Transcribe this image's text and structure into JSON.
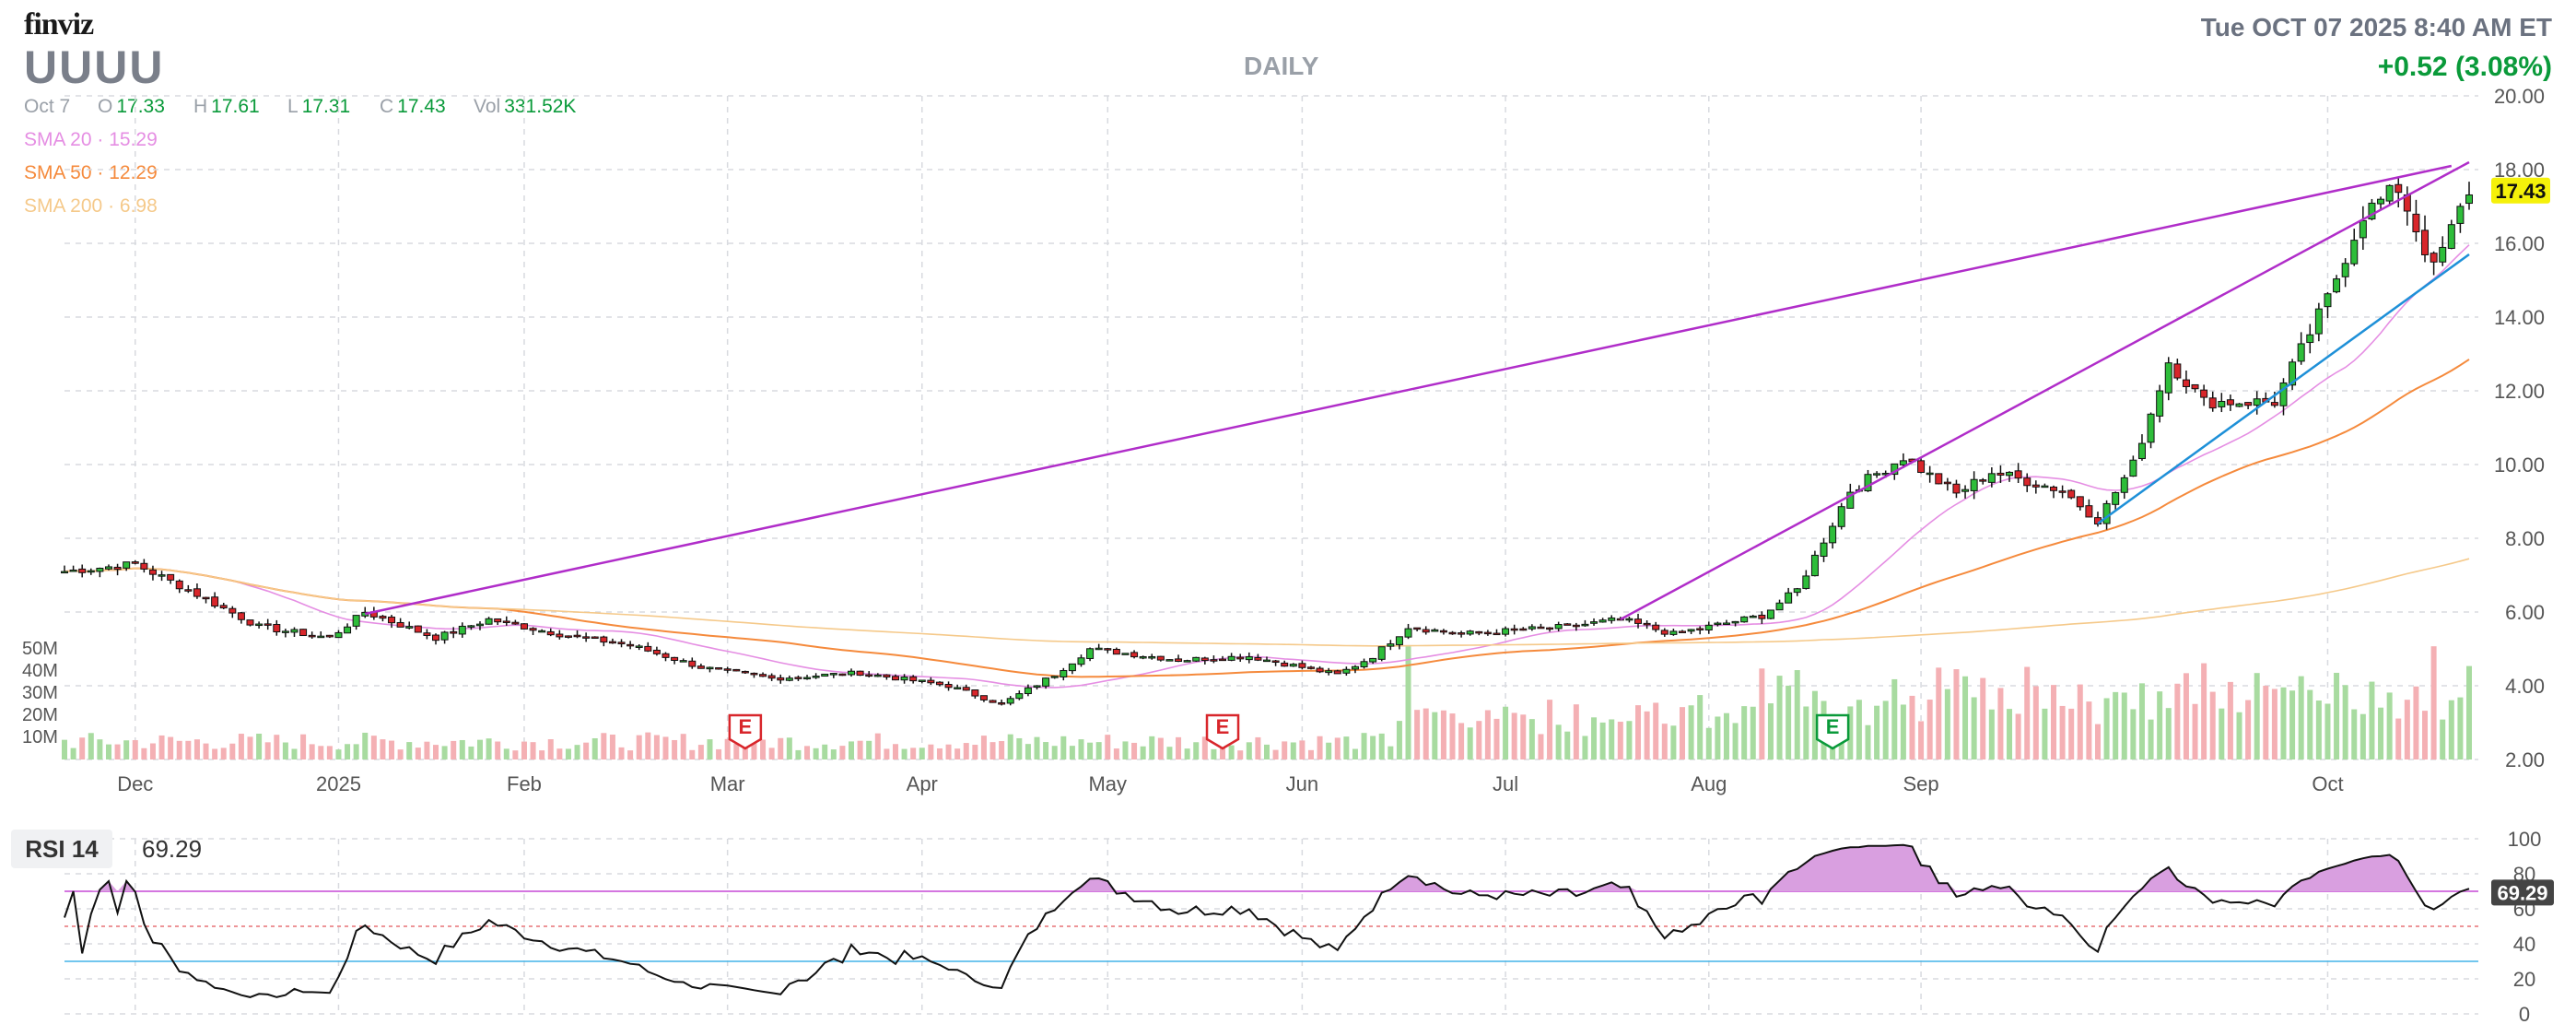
{
  "header": {
    "logo": "finviz",
    "ticker": "UUUU",
    "timeframe": "DAILY",
    "datetime": "Tue OCT 07 2025 8:40 AM ET",
    "change": "+0.52 (3.08%)"
  },
  "ohlc": {
    "date": "Oct 7",
    "open_label": "O",
    "open": "17.33",
    "high_label": "H",
    "high": "17.61",
    "low_label": "L",
    "low": "17.31",
    "close_label": "C",
    "close": "17.43",
    "vol_label": "Vol",
    "vol": "331.52K"
  },
  "smas": [
    {
      "label": "SMA 20",
      "value": "15.29",
      "color": "#e58ee3"
    },
    {
      "label": "SMA 50",
      "value": "12.29",
      "color": "#f58a3c"
    },
    {
      "label": "SMA 200",
      "value": "6.98",
      "color": "#f5c98a"
    }
  ],
  "colors": {
    "up": "#2ebd3a",
    "down": "#d8262b",
    "trendline": "#b02dc9",
    "channel": "#1e90d8",
    "vol_up": "#a8dba0",
    "vol_down": "#f4b0b4",
    "price_badge": "#f5f10a",
    "rsi": "#111111"
  },
  "chart_data": [
    {
      "type": "candlestick",
      "title": "UUUU",
      "y_axis_position": "right",
      "ylim": [
        2,
        20
      ],
      "yticks": [
        "20.00",
        "18.00",
        "16.00",
        "14.00",
        "12.00",
        "10.00",
        "8.00",
        "6.00",
        "4.00",
        "2.00"
      ],
      "x_tick_labels": [
        "Dec",
        "2025",
        "Feb",
        "Mar",
        "Apr",
        "May",
        "Jun",
        "Jul",
        "Aug",
        "Sep",
        "Oct"
      ],
      "last_price": "17.43",
      "earnings_markers": [
        "E",
        "E",
        "E"
      ],
      "grid": true
    },
    {
      "type": "bar",
      "title": "Volume",
      "y_tick_labels": [
        "50M",
        "40M",
        "30M",
        "20M",
        "10M"
      ],
      "ylim": [
        0,
        60
      ]
    },
    {
      "type": "line",
      "title": "RSI 14",
      "value": "69.29",
      "ylim": [
        0,
        100
      ],
      "yticks": [
        "100",
        "80",
        "70",
        "60",
        "40",
        "20",
        "0"
      ],
      "overbought": 70,
      "oversold": 30,
      "grid": true
    }
  ]
}
